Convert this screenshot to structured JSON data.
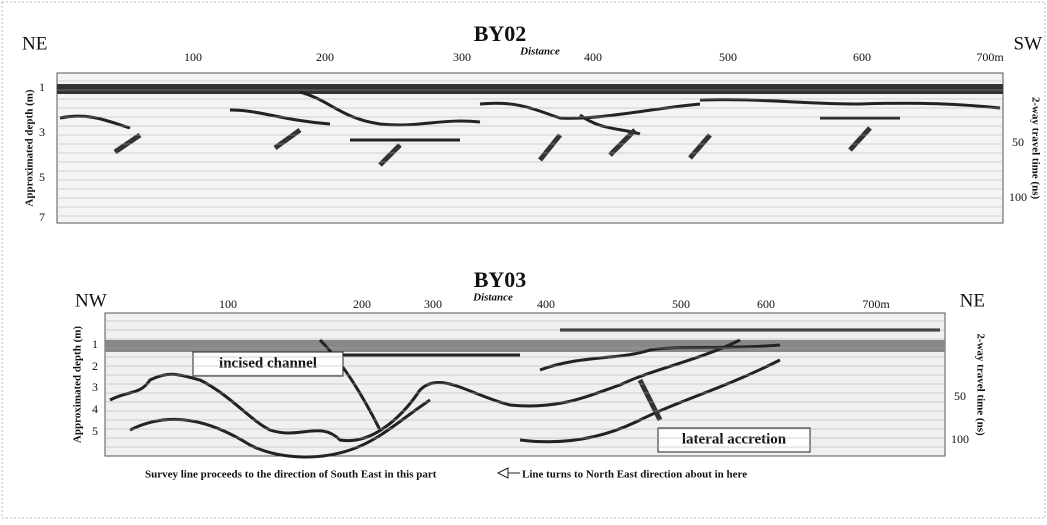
{
  "panels": [
    {
      "title": "BY02",
      "left_direction": "NE",
      "right_direction": "SW",
      "x_axis_label": "Distance",
      "x_ticks": [
        "100",
        "200",
        "300",
        "400",
        "500",
        "600",
        "700m"
      ],
      "left_axis_label": "Approximated depth (m)",
      "left_ticks": [
        "1",
        "3",
        "5",
        "7"
      ],
      "right_axis_label": "2-way travel time (ns)",
      "right_ticks": [
        "50",
        "100"
      ]
    },
    {
      "title": "BY03",
      "left_direction": "NW",
      "right_direction": "NE",
      "x_axis_label": "Distance",
      "x_ticks": [
        "100",
        "200",
        "300",
        "400",
        "500",
        "600",
        "700m"
      ],
      "left_axis_label": "Approximated depth (m)",
      "left_ticks": [
        "1",
        "2",
        "3",
        "4",
        "5"
      ],
      "right_axis_label": "2-way travel time (ns)",
      "right_ticks": [
        "50",
        "100"
      ],
      "annotations": [
        "incised channel",
        "lateral accretion"
      ],
      "notes": [
        "Survey line proceeds to the direction of South East in this part",
        "Line turns to North East direction about in here"
      ]
    }
  ]
}
